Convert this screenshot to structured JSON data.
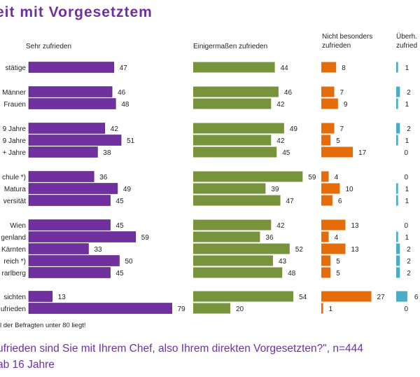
{
  "title": "eit  mit  Vorgesetztem",
  "columns": [
    {
      "label": "Sehr zufrieden",
      "color": "#7030a0"
    },
    {
      "label": "Einigermaßen zufrieden",
      "color": "#77933c"
    },
    {
      "label": "Nicht besonders zufrieden",
      "color": "#e46c0a"
    },
    {
      "label": "Überh. zufried",
      "color": "#4bacc6"
    }
  ],
  "footnote": "l der Befragten unter 80 liegt!",
  "question": "ufrieden sind Sie mit Ihrem Chef, also Ihrem direkten Vorgesetzten?\", n=444",
  "question_line2": "ab 16 Jahre",
  "chart_data": {
    "type": "bar",
    "stacking": "side-by-side panels",
    "categories": [
      "stätige",
      "Männer",
      "Frauen",
      "9 Jahre",
      "9 Jahre",
      "+ Jahre",
      "chule *)",
      "Matura",
      "versität",
      "Wien",
      "genland",
      "Kärnten",
      "reich *)",
      "rarlberg",
      "sichten",
      "ufrieden"
    ],
    "series": [
      {
        "name": "Sehr zufrieden",
        "values": [
          47,
          46,
          48,
          42,
          51,
          38,
          36,
          49,
          45,
          45,
          59,
          33,
          50,
          45,
          13,
          79
        ]
      },
      {
        "name": "Einigermaßen zufrieden",
        "values": [
          44,
          46,
          42,
          49,
          42,
          45,
          59,
          39,
          47,
          42,
          36,
          52,
          43,
          48,
          54,
          20
        ]
      },
      {
        "name": "Nicht besonders zufrieden",
        "values": [
          8,
          7,
          9,
          7,
          5,
          17,
          4,
          10,
          6,
          13,
          4,
          13,
          5,
          5,
          27,
          1
        ]
      },
      {
        "name": "Überh. zufried",
        "values": [
          1,
          2,
          1,
          2,
          1,
          0,
          0,
          1,
          1,
          0,
          1,
          2,
          2,
          2,
          6,
          0
        ]
      }
    ]
  }
}
